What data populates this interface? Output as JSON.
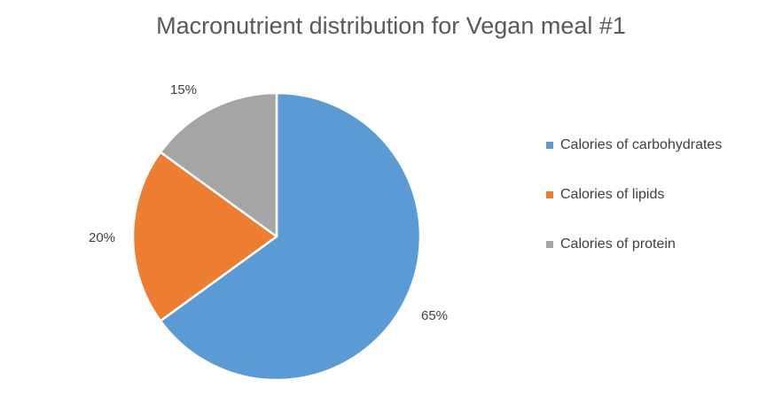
{
  "chart_data": {
    "type": "pie",
    "title": "Macronutrient distribution for Vegan meal #1",
    "legend_position": "right",
    "categories": [
      "Calories of carbohydrates",
      "Calories of lipids",
      "Calories of protein"
    ],
    "values": [
      65,
      20,
      15
    ],
    "data_labels": [
      "65%",
      "20%",
      "15%"
    ],
    "colors": [
      "#5B9BD5",
      "#ED7D31",
      "#A5A5A5"
    ]
  }
}
